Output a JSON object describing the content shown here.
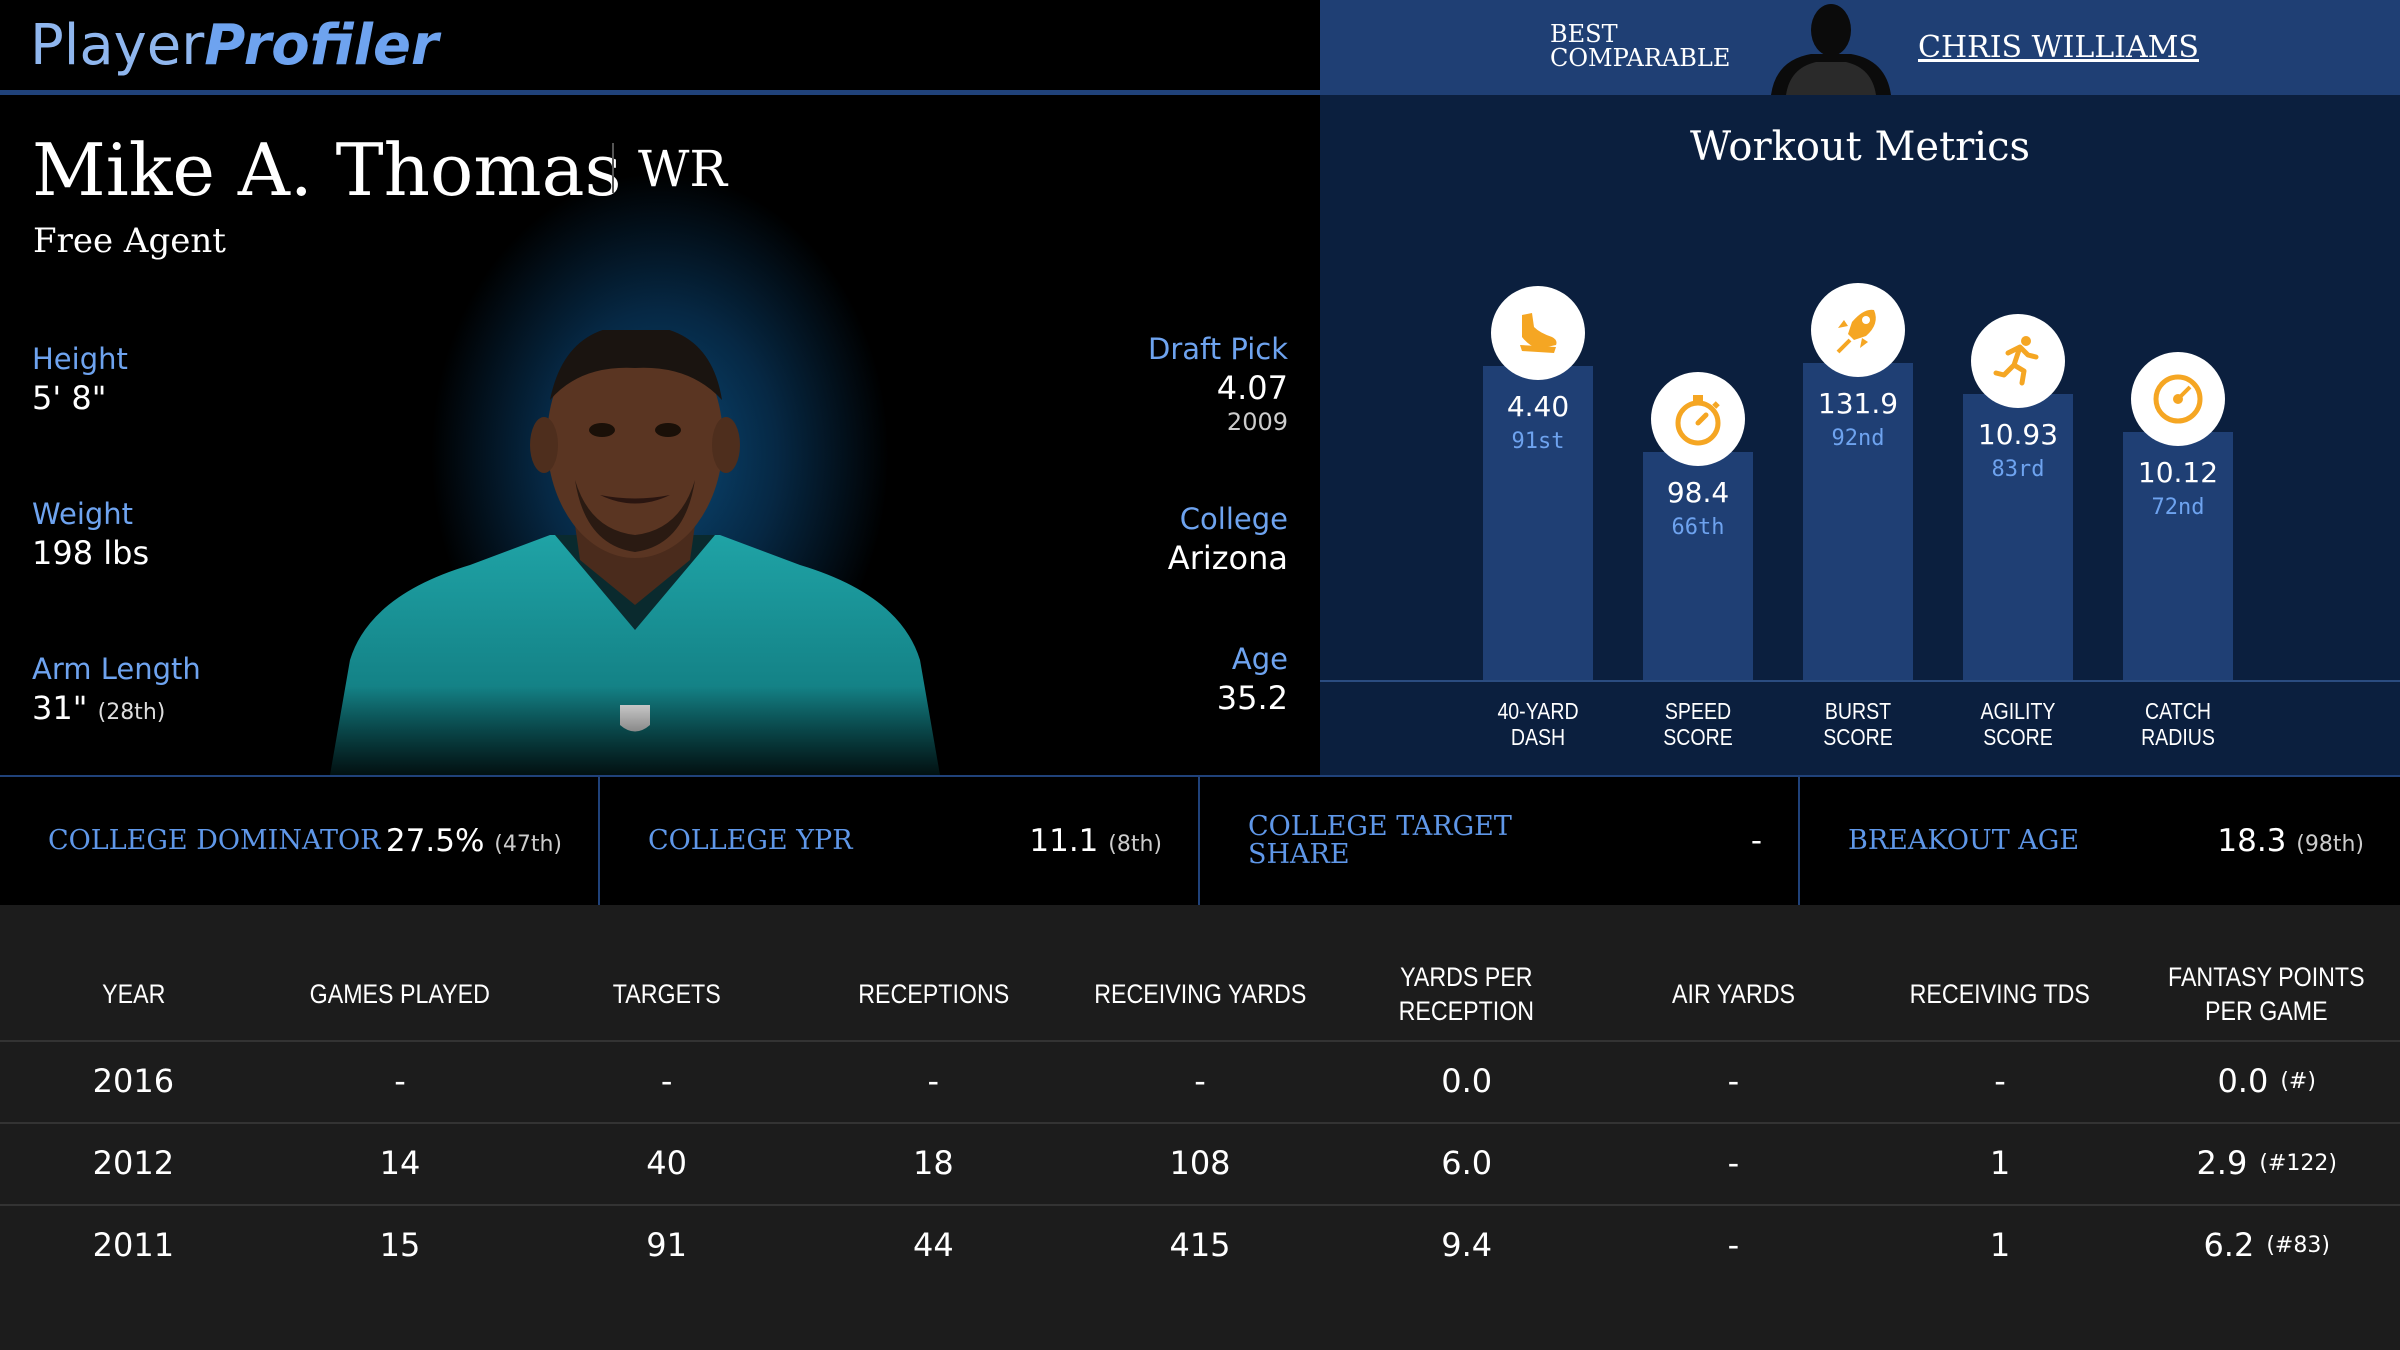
{
  "brand": {
    "part1": "Player",
    "part2": "Profiler"
  },
  "comparable": {
    "label_line1": "BEST",
    "label_line2": "COMPARABLE",
    "name": "CHRIS WILLIAMS"
  },
  "player": {
    "name": "Mike A. Thomas",
    "position": "WR",
    "team": "Free Agent",
    "height": {
      "label": "Height",
      "value": "5' 8\""
    },
    "weight": {
      "label": "Weight",
      "value": "198 lbs"
    },
    "arm_length": {
      "label": "Arm Length",
      "value": "31\"",
      "rank": "(28th)"
    },
    "draft_pick": {
      "label": "Draft Pick",
      "value": "4.07",
      "year": "2009"
    },
    "college": {
      "label": "College",
      "value": "Arizona"
    },
    "age": {
      "label": "Age",
      "value": "35.2"
    }
  },
  "workout": {
    "title": "Workout Metrics",
    "metrics": [
      {
        "name1": "40-YARD",
        "name2": "DASH",
        "value": "4.40",
        "rank": "91st",
        "percentile": 91,
        "icon": "shoe-icon"
      },
      {
        "name1": "SPEED",
        "name2": "SCORE",
        "value": "98.4",
        "rank": "66th",
        "percentile": 66,
        "icon": "stopwatch-icon"
      },
      {
        "name1": "BURST",
        "name2": "SCORE",
        "value": "131.9",
        "rank": "92nd",
        "percentile": 92,
        "icon": "rocket-icon"
      },
      {
        "name1": "AGILITY",
        "name2": "SCORE",
        "value": "10.93",
        "rank": "83rd",
        "percentile": 83,
        "icon": "runner-icon"
      },
      {
        "name1": "CATCH",
        "name2": "RADIUS",
        "value": "10.12",
        "rank": "72nd",
        "percentile": 72,
        "icon": "target-icon"
      }
    ]
  },
  "advanced": [
    {
      "label1": "COLLEGE DOMINATOR",
      "label2": "",
      "value": "27.5%",
      "rank": "(47th)"
    },
    {
      "label1": "COLLEGE YPR",
      "label2": "",
      "value": "11.1",
      "rank": "(8th)"
    },
    {
      "label1": "COLLEGE TARGET",
      "label2": "SHARE",
      "value": "-",
      "rank": ""
    },
    {
      "label1": "BREAKOUT AGE",
      "label2": "",
      "value": "18.3",
      "rank": "(98th)"
    }
  ],
  "table": {
    "headers": [
      "YEAR",
      "GAMES PLAYED",
      "TARGETS",
      "RECEPTIONS",
      "RECEIVING YARDS",
      "YARDS PER RECEPTION",
      "AIR YARDS",
      "RECEIVING TDS",
      "FANTASY POINTS PER GAME"
    ],
    "rows": [
      {
        "cells": [
          "2016",
          "-",
          "-",
          "-",
          "-",
          "0.0",
          "-",
          "-",
          "0.0"
        ],
        "fp_rank": "(#)"
      },
      {
        "cells": [
          "2012",
          "14",
          "40",
          "18",
          "108",
          "6.0",
          "-",
          "1",
          "2.9"
        ],
        "fp_rank": "(#122)"
      },
      {
        "cells": [
          "2011",
          "15",
          "91",
          "44",
          "415",
          "9.4",
          "-",
          "1",
          "6.2"
        ],
        "fp_rank": "(#83)"
      }
    ]
  }
}
